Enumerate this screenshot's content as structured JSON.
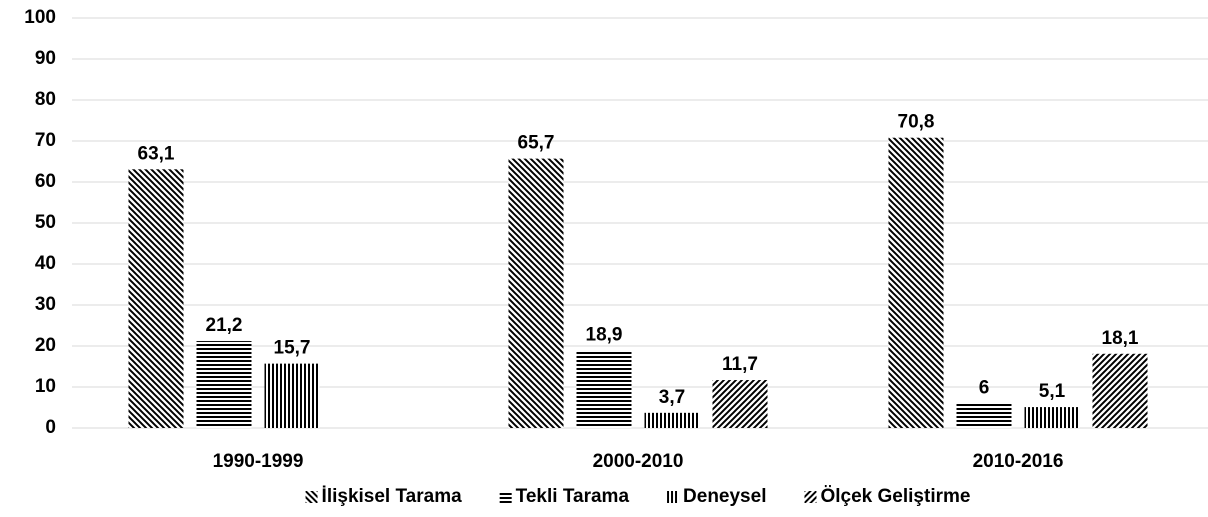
{
  "chart_data": {
    "type": "bar",
    "categories": [
      "1990-1999",
      "2000-2010",
      "2010-2016"
    ],
    "series": [
      {
        "name": "İlişkisel Tarama",
        "color": "#000000",
        "pattern": "backslash",
        "values": [
          63.1,
          65.7,
          70.8
        ],
        "value_labels": [
          "63,1",
          "65,7",
          "70,8"
        ]
      },
      {
        "name": "Tekli Tarama",
        "color": "#000000",
        "pattern": "horizontal",
        "values": [
          21.2,
          18.9,
          6
        ],
        "value_labels": [
          "21,2",
          "18,9",
          "6"
        ]
      },
      {
        "name": "Deneysel",
        "color": "#000000",
        "pattern": "vertical",
        "values": [
          15.7,
          3.7,
          5.1
        ],
        "value_labels": [
          "15,7",
          "3,7",
          "5,1"
        ]
      },
      {
        "name": "Ölçek Geliştirme",
        "color": "#000000",
        "pattern": "slash",
        "values": [
          null,
          11.7,
          18.1
        ],
        "value_labels": [
          null,
          "11,7",
          "18,1"
        ]
      }
    ],
    "ylim": [
      0,
      100
    ],
    "yticks": [
      0,
      10,
      20,
      30,
      40,
      50,
      60,
      70,
      80,
      90,
      100
    ],
    "grid": true,
    "legend": "bottom"
  }
}
